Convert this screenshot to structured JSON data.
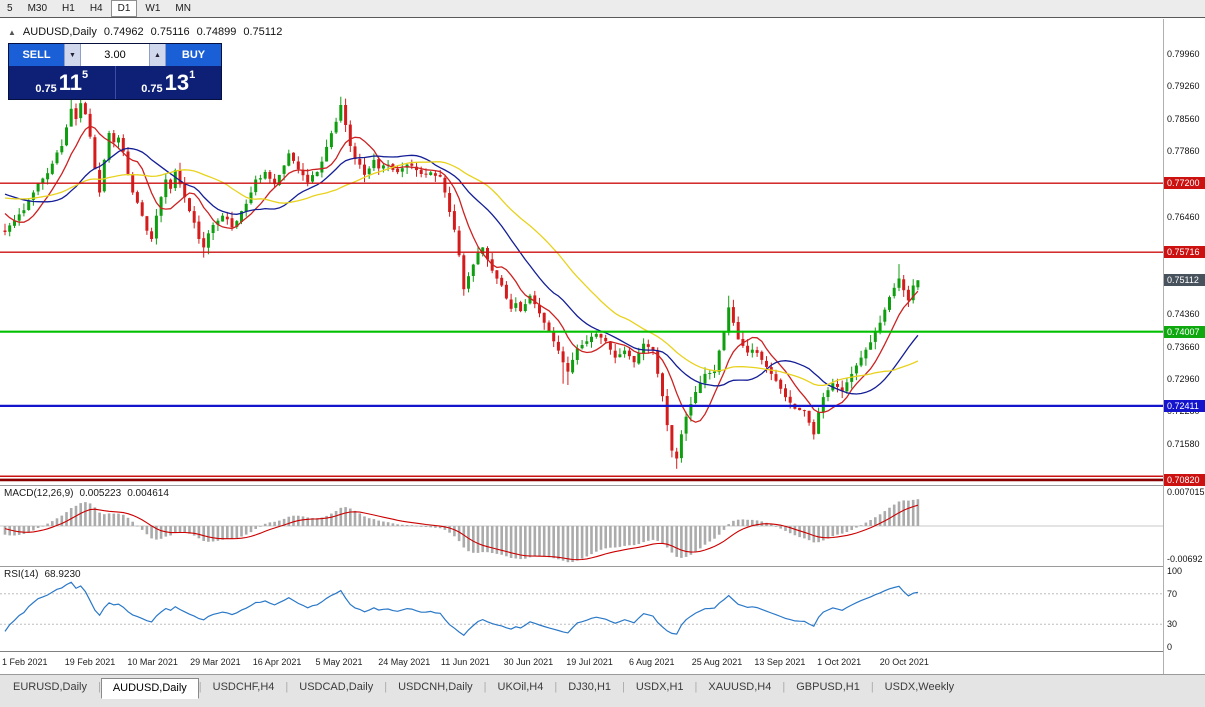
{
  "toolbar": {
    "items": [
      "5",
      "M30",
      "H1",
      "H4",
      "D1",
      "W1",
      "MN"
    ],
    "active": "D1"
  },
  "chart_header": {
    "symbol": "AUDUSD,Daily",
    "open": "0.74962",
    "high": "0.75116",
    "low": "0.74899",
    "close": "0.75112"
  },
  "trade_panel": {
    "sell_label": "SELL",
    "buy_label": "BUY",
    "lot_size": "3.00",
    "spin_down_glyph": "▼",
    "spin_up_glyph": "▲",
    "sell_price_prefix": "0.75",
    "sell_price_big": "11",
    "sell_price_sup": "5",
    "buy_price_prefix": "0.75",
    "buy_price_big": "13",
    "buy_price_sup": "1"
  },
  "price_axis": {
    "labels": [
      {
        "text": "0.79960",
        "price": 0.7996
      },
      {
        "text": "0.79260",
        "price": 0.7926
      },
      {
        "text": "0.78560",
        "price": 0.7856
      },
      {
        "text": "0.77860",
        "price": 0.7786
      },
      {
        "text": "0.76460",
        "price": 0.7646
      },
      {
        "text": "0.74360",
        "price": 0.7436
      },
      {
        "text": "0.73660",
        "price": 0.7366
      },
      {
        "text": "0.72960",
        "price": 0.7296
      },
      {
        "text": "0.72280",
        "price": 0.7228
      },
      {
        "text": "0.71580",
        "price": 0.7158
      }
    ],
    "tags": [
      {
        "text": "0.77200",
        "price": 0.772,
        "bg": "#cc1111"
      },
      {
        "text": "0.75716",
        "price": 0.75716,
        "bg": "#cc1111"
      },
      {
        "text": "0.75112",
        "price": 0.75112,
        "bg": "#47525c"
      },
      {
        "text": "0.74007",
        "price": 0.74007,
        "bg": "#0fa80f"
      },
      {
        "text": "0.72411",
        "price": 0.72411,
        "bg": "#1414cc"
      },
      {
        "text": "0.70820",
        "price": 0.7082,
        "bg": "#cc1111"
      }
    ]
  },
  "hlines": [
    {
      "price": 0.772,
      "color": "#cc1111",
      "w": 1.4
    },
    {
      "price": 0.75716,
      "color": "#cc1111",
      "w": 1.4
    },
    {
      "price": 0.74007,
      "color": "#00c000",
      "w": 2.2
    },
    {
      "price": 0.72411,
      "color": "#1414cc",
      "w": 2.2
    },
    {
      "price": 0.709,
      "color": "#cc1111",
      "w": 1.5
    },
    {
      "price": 0.7082,
      "color": "#8b0000",
      "w": 2.6
    }
  ],
  "indicators": {
    "macd": {
      "label": "MACD(12,26,9)",
      "value_main": "0.005223",
      "value_signal": "0.004614",
      "axis_top": "0.007015",
      "axis_bottom": "-0.00692"
    },
    "rsi": {
      "label": "RSI(14)",
      "value": "68.9230",
      "axis_levels": [
        "100",
        "70",
        "30",
        "0"
      ]
    }
  },
  "time_axis": {
    "labels": [
      "1 Feb 2021",
      "19 Feb 2021",
      "10 Mar 2021",
      "29 Mar 2021",
      "16 Apr 2021",
      "5 May 2021",
      "24 May 2021",
      "11 Jun 2021",
      "30 Jun 2021",
      "19 Jul 2021",
      "6 Aug 2021",
      "25 Aug 2021",
      "13 Sep 2021",
      "1 Oct 2021",
      "20 Oct 2021"
    ]
  },
  "tabs": {
    "items": [
      "EURUSD,Daily",
      "AUDUSD,Daily",
      "USDCHF,H4",
      "USDCAD,Daily",
      "USDCNH,Daily",
      "UKOil,H4",
      "DJ30,H1",
      "USDX,H1",
      "XAUUSD,H4",
      "GBPUSD,H1",
      "USDX,Weekly"
    ],
    "active": "AUDUSD,Daily"
  },
  "chart_data": {
    "type": "candlestick",
    "symbol": "AUDUSD",
    "timeframe": "Daily",
    "visible_bars": 194,
    "price_range_visible": [
      0.7065,
      0.8073
    ],
    "colors": {
      "up": "#0f9e0f",
      "down": "#d41c1c"
    },
    "pre_anchors": [
      [
        -60,
        0.77
      ],
      [
        -50,
        0.774
      ],
      [
        -40,
        0.769
      ],
      [
        -30,
        0.766
      ],
      [
        -20,
        0.77
      ],
      [
        -10,
        0.7745
      ],
      [
        -5,
        0.768
      ],
      [
        -2,
        0.763
      ],
      [
        -1,
        0.7618
      ]
    ],
    "close_anchors": [
      [
        0,
        0.7615
      ],
      [
        2,
        0.764
      ],
      [
        4,
        0.7662
      ],
      [
        6,
        0.77
      ],
      [
        8,
        0.773
      ],
      [
        10,
        0.7762
      ],
      [
        12,
        0.78
      ],
      [
        13,
        0.784
      ],
      [
        14,
        0.788
      ],
      [
        15,
        0.7858
      ],
      [
        16,
        0.7892
      ],
      [
        17,
        0.7868
      ],
      [
        18,
        0.782
      ],
      [
        19,
        0.775
      ],
      [
        20,
        0.77
      ],
      [
        21,
        0.777
      ],
      [
        22,
        0.7828
      ],
      [
        23,
        0.7808
      ],
      [
        24,
        0.7818
      ],
      [
        25,
        0.7788
      ],
      [
        26,
        0.774
      ],
      [
        27,
        0.77
      ],
      [
        28,
        0.7678
      ],
      [
        29,
        0.765
      ],
      [
        30,
        0.7618
      ],
      [
        31,
        0.76
      ],
      [
        32,
        0.765
      ],
      [
        33,
        0.769
      ],
      [
        34,
        0.7728
      ],
      [
        35,
        0.7708
      ],
      [
        36,
        0.7748
      ],
      [
        37,
        0.7718
      ],
      [
        38,
        0.769
      ],
      [
        39,
        0.766
      ],
      [
        40,
        0.7635
      ],
      [
        41,
        0.76
      ],
      [
        42,
        0.7582
      ],
      [
        43,
        0.7612
      ],
      [
        44,
        0.763
      ],
      [
        46,
        0.765
      ],
      [
        48,
        0.7625
      ],
      [
        50,
        0.766
      ],
      [
        52,
        0.77
      ],
      [
        53,
        0.7728
      ],
      [
        55,
        0.7744
      ],
      [
        57,
        0.7718
      ],
      [
        59,
        0.7758
      ],
      [
        60,
        0.7784
      ],
      [
        61,
        0.7768
      ],
      [
        62,
        0.775
      ],
      [
        64,
        0.7722
      ],
      [
        66,
        0.7744
      ],
      [
        68,
        0.7798
      ],
      [
        70,
        0.7852
      ],
      [
        71,
        0.7888
      ],
      [
        72,
        0.7845
      ],
      [
        73,
        0.78
      ],
      [
        74,
        0.7772
      ],
      [
        76,
        0.7738
      ],
      [
        78,
        0.777
      ],
      [
        79,
        0.7752
      ],
      [
        81,
        0.776
      ],
      [
        83,
        0.7744
      ],
      [
        85,
        0.776
      ],
      [
        87,
        0.7748
      ],
      [
        89,
        0.774
      ],
      [
        91,
        0.7736
      ],
      [
        92,
        0.7734
      ],
      [
        93,
        0.77
      ],
      [
        94,
        0.7658
      ],
      [
        95,
        0.762
      ],
      [
        96,
        0.7565
      ],
      [
        97,
        0.7492
      ],
      [
        98,
        0.752
      ],
      [
        99,
        0.7545
      ],
      [
        100,
        0.757
      ],
      [
        101,
        0.7582
      ],
      [
        102,
        0.7556
      ],
      [
        103,
        0.7532
      ],
      [
        104,
        0.7515
      ],
      [
        105,
        0.75
      ],
      [
        106,
        0.7472
      ],
      [
        107,
        0.745
      ],
      [
        108,
        0.7462
      ],
      [
        109,
        0.7445
      ],
      [
        110,
        0.746
      ],
      [
        111,
        0.7478
      ],
      [
        112,
        0.746
      ],
      [
        113,
        0.744
      ],
      [
        114,
        0.742
      ],
      [
        115,
        0.74
      ],
      [
        116,
        0.738
      ],
      [
        117,
        0.736
      ],
      [
        118,
        0.7335
      ],
      [
        119,
        0.7315
      ],
      [
        120,
        0.734
      ],
      [
        121,
        0.7365
      ],
      [
        122,
        0.7372
      ],
      [
        123,
        0.738
      ],
      [
        124,
        0.739
      ],
      [
        125,
        0.7396
      ],
      [
        126,
        0.7388
      ],
      [
        127,
        0.738
      ],
      [
        128,
        0.7362
      ],
      [
        129,
        0.7345
      ],
      [
        130,
        0.7352
      ],
      [
        131,
        0.736
      ],
      [
        132,
        0.7348
      ],
      [
        133,
        0.7335
      ],
      [
        134,
        0.7355
      ],
      [
        135,
        0.7375
      ],
      [
        136,
        0.7368
      ],
      [
        137,
        0.736
      ],
      [
        138,
        0.731
      ],
      [
        139,
        0.7262
      ],
      [
        140,
        0.72
      ],
      [
        141,
        0.7145
      ],
      [
        142,
        0.7128
      ],
      [
        143,
        0.718
      ],
      [
        144,
        0.7218
      ],
      [
        145,
        0.7245
      ],
      [
        146,
        0.7271
      ],
      [
        147,
        0.729
      ],
      [
        148,
        0.731
      ],
      [
        149,
        0.7312
      ],
      [
        150,
        0.7315
      ],
      [
        151,
        0.736
      ],
      [
        152,
        0.74
      ],
      [
        153,
        0.7453
      ],
      [
        154,
        0.742
      ],
      [
        155,
        0.7384
      ],
      [
        156,
        0.737
      ],
      [
        157,
        0.7356
      ],
      [
        158,
        0.7362
      ],
      [
        159,
        0.7355
      ],
      [
        160,
        0.734
      ],
      [
        161,
        0.7325
      ],
      [
        162,
        0.731
      ],
      [
        163,
        0.7295
      ],
      [
        164,
        0.7278
      ],
      [
        165,
        0.726
      ],
      [
        166,
        0.7248
      ],
      [
        167,
        0.7235
      ],
      [
        168,
        0.7232
      ],
      [
        169,
        0.723
      ],
      [
        170,
        0.7205
      ],
      [
        171,
        0.718
      ],
      [
        172,
        0.7227
      ],
      [
        173,
        0.726
      ],
      [
        174,
        0.7275
      ],
      [
        175,
        0.729
      ],
      [
        176,
        0.7282
      ],
      [
        177,
        0.7273
      ],
      [
        178,
        0.7292
      ],
      [
        179,
        0.731
      ],
      [
        180,
        0.7328
      ],
      [
        181,
        0.7345
      ],
      [
        182,
        0.7362
      ],
      [
        183,
        0.7378
      ],
      [
        184,
        0.74
      ],
      [
        185,
        0.742
      ],
      [
        186,
        0.7448
      ],
      [
        187,
        0.7475
      ],
      [
        188,
        0.7495
      ],
      [
        189,
        0.7515
      ],
      [
        190,
        0.749
      ],
      [
        191,
        0.7468
      ],
      [
        192,
        0.75
      ],
      [
        193,
        0.7511
      ]
    ],
    "wick_overrides": {
      "14": {
        "h": 0.792
      },
      "16": {
        "h": 0.7905
      },
      "42": {
        "l": 0.756
      },
      "71": {
        "h": 0.7906
      },
      "97": {
        "l": 0.7478
      },
      "118": {
        "l": 0.7289
      },
      "119": {
        "l": 0.7286
      },
      "142": {
        "l": 0.7106
      },
      "153": {
        "h": 0.7478
      },
      "171": {
        "l": 0.7169
      },
      "189": {
        "h": 0.7546
      }
    },
    "last_bar": {
      "o": 0.74962,
      "h": 0.75116,
      "l": 0.74899,
      "c": 0.75112
    },
    "moving_averages": [
      {
        "period": 8,
        "color": "#cc2222"
      },
      {
        "period": 20,
        "color": "#141e96"
      },
      {
        "period": 34,
        "color": "#e8d21e"
      }
    ],
    "macd": {
      "fast": 12,
      "slow": 26,
      "signal": 9,
      "histogram_color": "#ababab",
      "signal_color": "#cc0000",
      "axis_max": 0.007015,
      "axis_min": -0.00692
    },
    "rsi": {
      "period": 14,
      "color": "#2a78c8",
      "levels": [
        70,
        30
      ],
      "axis_range": [
        0,
        100
      ]
    }
  }
}
